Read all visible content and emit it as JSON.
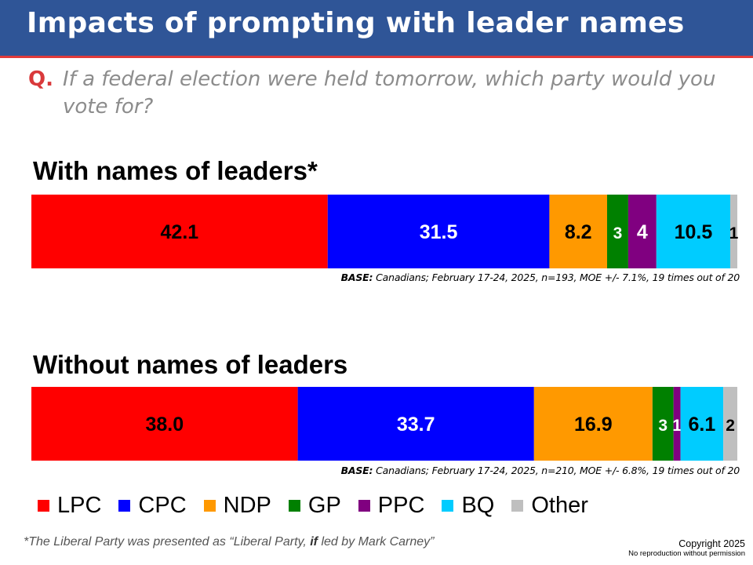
{
  "header": {
    "title": "Impacts of prompting with leader names"
  },
  "question": {
    "label": "Q.",
    "text": "If a federal election were held tomorrow, which party would you vote for?"
  },
  "colors": {
    "LPC": "#ff0000",
    "CPC": "#0000ff",
    "NDP": "#ff9900",
    "GP": "#008000",
    "PPC": "#800080",
    "BQ": "#00ccff",
    "Other": "#bfbfbf",
    "header_bg": "#2f5597"
  },
  "chart_data": [
    {
      "type": "bar",
      "orientation": "horizontal-stacked",
      "title": "With names of leaders*",
      "categories": [
        "LPC",
        "CPC",
        "NDP",
        "GP",
        "PPC",
        "BQ",
        "Other"
      ],
      "values": [
        42.1,
        31.5,
        8.2,
        3,
        4,
        10.5,
        1
      ],
      "labels": [
        "42.1",
        "31.5",
        "8.2",
        "3",
        "4",
        "10.5",
        "1"
      ],
      "base_label": "BASE:",
      "base_text": "Canadians; February 17-24, 2025, n=193, MOE +/- 7.1%, 19 times out of 20"
    },
    {
      "type": "bar",
      "orientation": "horizontal-stacked",
      "title": "Without names of leaders",
      "categories": [
        "LPC",
        "CPC",
        "NDP",
        "GP",
        "PPC",
        "BQ",
        "Other"
      ],
      "values": [
        38.0,
        33.7,
        16.9,
        3,
        1,
        6.1,
        2
      ],
      "labels": [
        "38.0",
        "33.7",
        "16.9",
        "3",
        "1",
        "6.1",
        "2"
      ],
      "base_label": "BASE:",
      "base_text": "Canadians; February 17-24, 2025, n=210, MOE +/- 6.8%, 19 times out of 20"
    }
  ],
  "legend": {
    "items": [
      {
        "label": "LPC",
        "key": "LPC"
      },
      {
        "label": "CPC",
        "key": "CPC"
      },
      {
        "label": "NDP",
        "key": "NDP"
      },
      {
        "label": "GP",
        "key": "GP"
      },
      {
        "label": "PPC",
        "key": "PPC"
      },
      {
        "label": "BQ",
        "key": "BQ"
      },
      {
        "label": "Other",
        "key": "Other"
      }
    ]
  },
  "footnote": {
    "before": "*The Liberal Party was presented as “Liberal Party, ",
    "emphasis": "if",
    "after": " led by Mark Carney”"
  },
  "copyright": {
    "line1": "Copyright 2025",
    "line2": "No reproduction without permission"
  }
}
